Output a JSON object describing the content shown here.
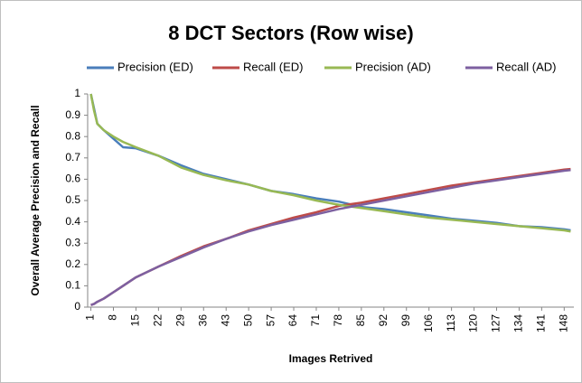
{
  "chart_data": {
    "type": "line",
    "title": "8 DCT Sectors (Row wise)",
    "x_label": "Images Retrived",
    "y_label": "Overall Average Precision and Recall",
    "x": [
      1,
      2,
      3,
      5,
      8,
      11,
      15,
      22,
      29,
      36,
      43,
      50,
      57,
      64,
      71,
      78,
      85,
      92,
      99,
      106,
      113,
      120,
      127,
      134,
      141,
      148,
      150
    ],
    "xlim": [
      0,
      151
    ],
    "xticks": [
      1,
      8,
      15,
      22,
      29,
      36,
      43,
      50,
      57,
      64,
      71,
      78,
      85,
      92,
      99,
      106,
      113,
      120,
      127,
      134,
      141,
      148
    ],
    "ylim": [
      0,
      1
    ],
    "yticks": [
      0,
      0.1,
      0.2,
      0.3,
      0.4,
      0.5,
      0.6,
      0.7,
      0.8,
      0.9,
      1
    ],
    "series": [
      {
        "name": "Precision (ED)",
        "color": "#4a7ebb",
        "values": [
          1.0,
          0.93,
          0.86,
          0.83,
          0.79,
          0.75,
          0.745,
          0.71,
          0.665,
          0.625,
          0.6,
          0.575,
          0.545,
          0.53,
          0.51,
          0.495,
          0.47,
          0.46,
          0.445,
          0.43,
          0.415,
          0.405,
          0.395,
          0.38,
          0.375,
          0.365,
          0.36
        ]
      },
      {
        "name": "Recall (ED)",
        "color": "#be4b48",
        "values": [
          0.01,
          0.015,
          0.025,
          0.04,
          0.07,
          0.1,
          0.14,
          0.19,
          0.24,
          0.285,
          0.32,
          0.36,
          0.39,
          0.42,
          0.445,
          0.475,
          0.49,
          0.51,
          0.53,
          0.55,
          0.57,
          0.585,
          0.6,
          0.615,
          0.63,
          0.645,
          0.648
        ]
      },
      {
        "name": "Precision (AD)",
        "color": "#98b954",
        "values": [
          1.0,
          0.92,
          0.86,
          0.83,
          0.8,
          0.775,
          0.75,
          0.71,
          0.655,
          0.62,
          0.595,
          0.575,
          0.545,
          0.525,
          0.5,
          0.48,
          0.465,
          0.45,
          0.435,
          0.42,
          0.41,
          0.4,
          0.39,
          0.38,
          0.37,
          0.36,
          0.355
        ]
      },
      {
        "name": "Recall (AD)",
        "color": "#7d60a0",
        "values": [
          0.01,
          0.015,
          0.025,
          0.04,
          0.07,
          0.1,
          0.14,
          0.19,
          0.235,
          0.28,
          0.32,
          0.355,
          0.385,
          0.41,
          0.435,
          0.46,
          0.48,
          0.5,
          0.52,
          0.54,
          0.56,
          0.58,
          0.595,
          0.61,
          0.625,
          0.64,
          0.643
        ]
      }
    ]
  }
}
